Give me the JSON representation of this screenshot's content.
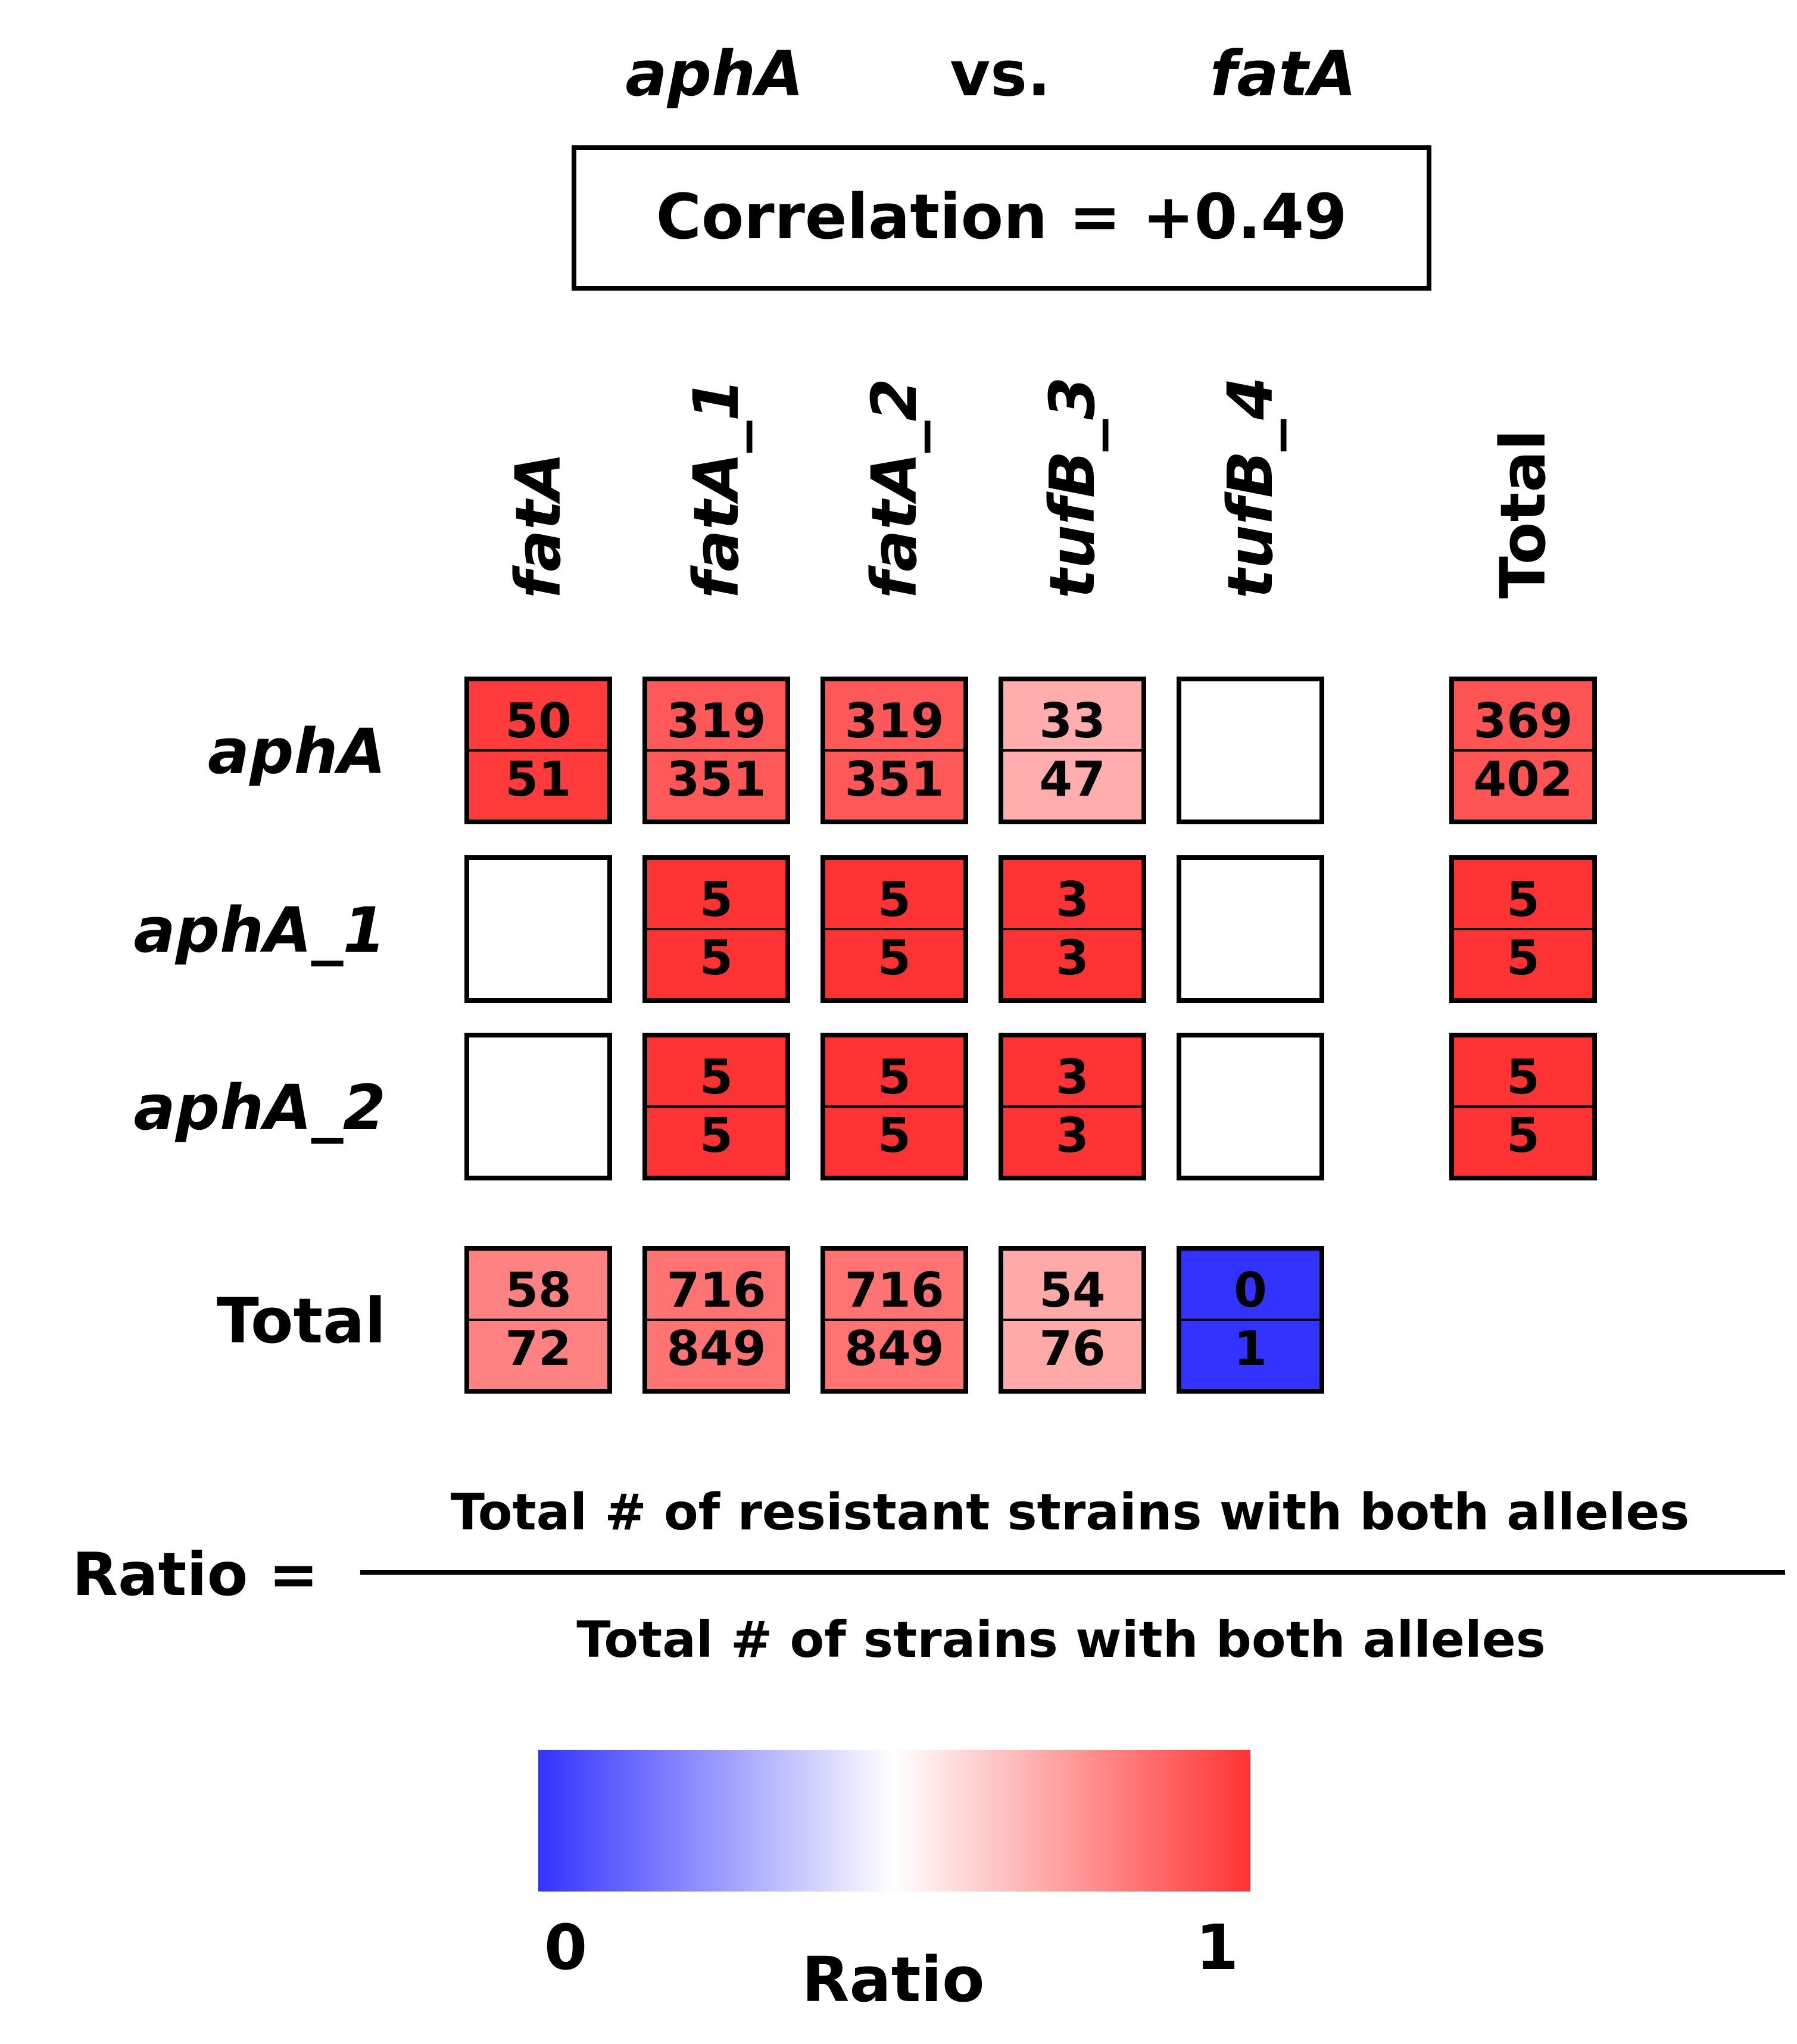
{
  "header": {
    "gene_a": "aphA",
    "vs": "vs.",
    "gene_b": "fatA",
    "correlation": "Correlation = +0.49"
  },
  "chart_data": {
    "type": "heatmap",
    "columns": [
      "fatA",
      "fatA_1",
      "fatA_2",
      "tufB_3",
      "tufB_4",
      "Total"
    ],
    "rows": [
      "aphA",
      "aphA_1",
      "aphA_2",
      "Total"
    ],
    "cells": [
      [
        {
          "num": 50,
          "den": 51
        },
        {
          "num": 319,
          "den": 351
        },
        {
          "num": 319,
          "den": 351
        },
        {
          "num": 33,
          "den": 47
        },
        null,
        {
          "num": 369,
          "den": 402
        }
      ],
      [
        null,
        {
          "num": 5,
          "den": 5
        },
        {
          "num": 5,
          "den": 5
        },
        {
          "num": 3,
          "den": 3
        },
        null,
        {
          "num": 5,
          "den": 5
        }
      ],
      [
        null,
        {
          "num": 5,
          "den": 5
        },
        {
          "num": 5,
          "den": 5
        },
        {
          "num": 3,
          "den": 3
        },
        null,
        {
          "num": 5,
          "den": 5
        }
      ],
      [
        {
          "num": 58,
          "den": 72
        },
        {
          "num": 716,
          "den": 849
        },
        {
          "num": 716,
          "den": 849
        },
        {
          "num": 54,
          "den": 76
        },
        {
          "num": 0,
          "den": 1
        },
        null
      ]
    ],
    "colorscale": {
      "min": 0,
      "mid": 0.5,
      "max": 1,
      "low_color": "#3333ff",
      "mid_color": "#ffffff",
      "high_color": "#ff3333"
    },
    "colorbar": {
      "label": "Ratio",
      "min_label": "0",
      "max_label": "1"
    }
  },
  "formula": {
    "lhs": "Ratio =",
    "numerator": "Total # of resistant strains with both alleles",
    "denominator": "Total # of strains with both alleles"
  }
}
